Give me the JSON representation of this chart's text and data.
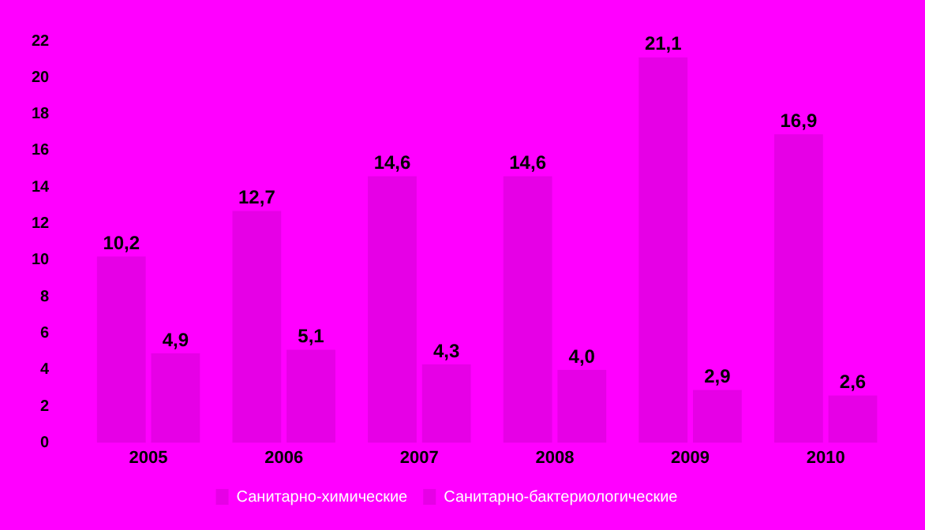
{
  "chart_data": {
    "type": "bar",
    "categories": [
      "2005",
      "2006",
      "2007",
      "2008",
      "2009",
      "2010"
    ],
    "series": [
      {
        "name": "Санитарно-химические",
        "color": "#e600e6",
        "values": [
          10.2,
          12.7,
          14.6,
          14.6,
          21.1,
          16.9
        ],
        "value_labels": [
          "10,2",
          "12,7",
          "14,6",
          "14,6",
          "21,1",
          "16,9"
        ]
      },
      {
        "name": "Санитарно-бактериологические",
        "color": "#e600e6",
        "values": [
          4.9,
          5.1,
          4.3,
          4.0,
          2.9,
          2.6
        ],
        "value_labels": [
          "4,9",
          "5,1",
          "4,3",
          "4,0",
          "2,9",
          "2,6"
        ]
      }
    ],
    "ylim": [
      0,
      22
    ],
    "yticks": [
      0,
      2,
      4,
      6,
      8,
      10,
      12,
      14,
      16,
      18,
      20,
      22
    ],
    "grid": false,
    "legend": "bottom"
  }
}
